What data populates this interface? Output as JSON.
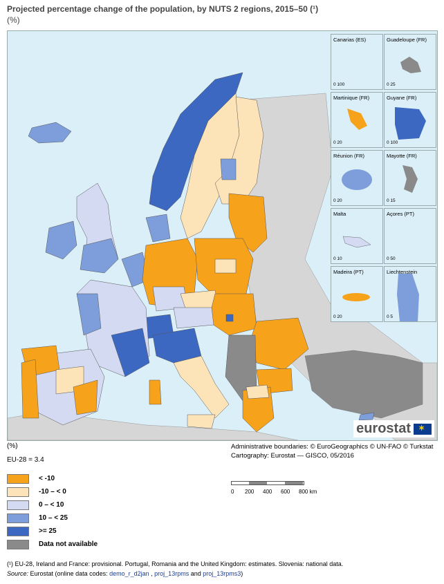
{
  "title": "Projected percentage change of the population, by NUTS 2 regions, 2015–50 (¹)",
  "unit_top": "(%)",
  "unit_bottom": "(%)",
  "eu_note": "EU-28 = 3.4",
  "colors": {
    "sea": "#dbeff8",
    "non_eu": "#d6d6d6",
    "c1": "#f7a21b",
    "c2": "#fde3b8",
    "c3": "#d3daf1",
    "c4": "#7d9edb",
    "c5": "#3d68c2",
    "na": "#8a8a8a"
  },
  "legend": [
    {
      "label": "< -10",
      "color": "#f7a21b"
    },
    {
      "label": "-10 – < 0",
      "color": "#fde3b8"
    },
    {
      "label": "0 – < 10",
      "color": "#d3daf1"
    },
    {
      "label": "10 – < 25",
      "color": "#7d9edb"
    },
    {
      "label": ">= 25",
      "color": "#3d68c2"
    },
    {
      "label": "Data not available",
      "color": "#8a8a8a"
    }
  ],
  "insets": [
    {
      "label": "Canarias (ES)",
      "scale": "0  100"
    },
    {
      "label": "Guadeloupe (FR)",
      "scale": "0  25"
    },
    {
      "label": "Martinique (FR)",
      "scale": "0  20"
    },
    {
      "label": "Guyane (FR)",
      "scale": "0  100"
    },
    {
      "label": "Réunion (FR)",
      "scale": "0  20"
    },
    {
      "label": "Mayotte (FR)",
      "scale": "0  15"
    },
    {
      "label": "Malta",
      "scale": "0  10"
    },
    {
      "label": "Açores (PT)",
      "scale": "0  50"
    },
    {
      "label": "Madeira (PT)",
      "scale": "0  20"
    },
    {
      "label": "Liechtenstein",
      "scale": "0  5"
    }
  ],
  "logo_text": "eurostat",
  "credits": {
    "line1": "Administrative boundaries: © EuroGeographics © UN-FAO © Turkstat",
    "line2": "Cartography: Eurostat — GISCO, 05/2016"
  },
  "scale_labels": [
    "0",
    "200",
    "400",
    "600",
    "800 km"
  ],
  "footnote": {
    "line1": "(¹) EU-28, Ireland and France: provisional. Portugal, Romania and the United Kingdom: estimates. Slovenia: national data.",
    "source_label": "Source:",
    "source_text": " Eurostat (online data codes: ",
    "code1": "demo_r_d2jan",
    "sep1": " , ",
    "code2": "proj_13rpms",
    "sep2": " and ",
    "code3": "proj_13rpms3",
    "end": ")"
  }
}
